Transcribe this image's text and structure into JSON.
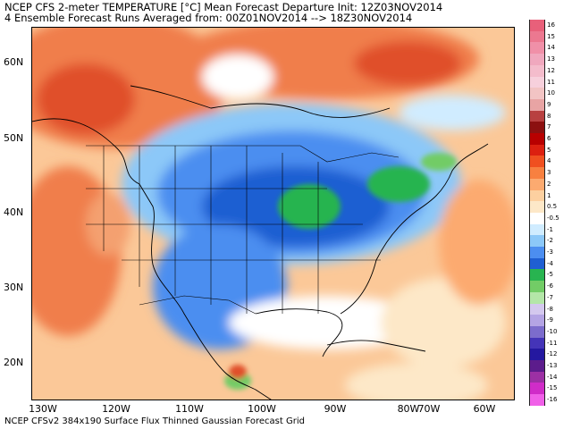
{
  "header": {
    "line1": "NCEP CFS 2-meter TEMPERATURE [°C] Mean Forecast Departure Init: 12Z03NOV2014",
    "line2": "4 Ensemble Forecast Runs Averaged from: 00Z01NOV2014 --> 18Z30NOV2014"
  },
  "footer": "NCEP CFSv2 384x190 Surface Flux Thinned Gaussian Forecast Grid",
  "map": {
    "lat_labels": [
      "60N",
      "50N",
      "40N",
      "30N",
      "20N"
    ],
    "lon_labels": [
      "130W",
      "120W",
      "110W",
      "100W",
      "90W",
      "80W",
      "70W",
      "60W"
    ]
  },
  "colorbar": {
    "labels": [
      "16",
      "15",
      "14",
      "13",
      "12",
      "11",
      "10",
      "9",
      "8",
      "7",
      "6",
      "5",
      "4",
      "3",
      "2",
      "1",
      "0.5",
      "-0.5",
      "-1",
      "-2",
      "-3",
      "-4",
      "-5",
      "-6",
      "-7",
      "-8",
      "-9",
      "-10",
      "-11",
      "-12",
      "-13",
      "-14",
      "-15",
      "-16"
    ],
    "colors": [
      "#e8607a",
      "#ec7890",
      "#f090a8",
      "#f0a8be",
      "#f4bccc",
      "#f7d0dc",
      "#f2c4c4",
      "#e8a4a4",
      "#b84040",
      "#8c1010",
      "#b80000",
      "#dc2010",
      "#f05020",
      "#f88040",
      "#fcaa70",
      "#fdd0a0",
      "#fde8c8",
      "#ffffff",
      "#d0ecff",
      "#8cc8f8",
      "#4c8ef0",
      "#1f5fd2",
      "#28b450",
      "#72cc66",
      "#b4e6a8",
      "#d4c8ee",
      "#b4a4e4",
      "#7c6ccc",
      "#4434b8",
      "#2418a0",
      "#5c1c8c",
      "#9c30a4",
      "#d02cc8",
      "#f060e8"
    ]
  }
}
